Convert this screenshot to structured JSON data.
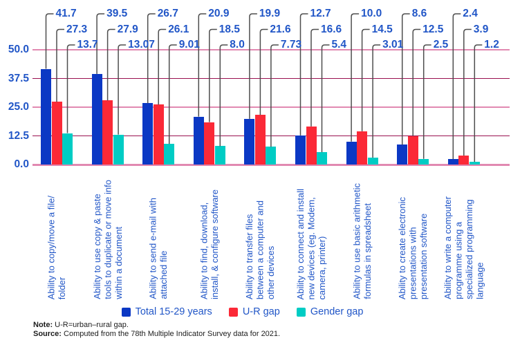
{
  "chart_data": {
    "type": "bar",
    "title": "",
    "categories": [
      [
        "Ability to copy/move a file/",
        "folder"
      ],
      [
        "Ability to use copy & paste",
        "tools to duplicate or move info",
        "within a document"
      ],
      [
        "Ability to send e-mail with",
        "attached file"
      ],
      [
        "Ability to find, download,",
        "install, & configure software"
      ],
      [
        "Ability to transfer files",
        "between a computer and",
        "other devices"
      ],
      [
        "Ability to connect and install",
        "new devices (eg. Modem,",
        "camera, printer)"
      ],
      [
        "Ability to use basic arithmetic",
        "formulas in spreadsheet"
      ],
      [
        "Ability to create electronic",
        "presentations with",
        "presentation software"
      ],
      [
        "Ability to write a computer",
        "programme using a",
        "specialized programming",
        "language"
      ]
    ],
    "series": [
      {
        "name": "Total 15-29 years",
        "color": "#0B38C4",
        "values": [
          41.7,
          39.5,
          26.7,
          20.9,
          19.9,
          12.7,
          10.0,
          8.6,
          2.4
        ],
        "labels": [
          "41.7",
          "39.5",
          "26.7",
          "20.9",
          "19.9",
          "12.7",
          "10.0",
          "8.6",
          "2.4"
        ]
      },
      {
        "name": "U-R gap",
        "color": "#FB2937",
        "values": [
          27.3,
          27.9,
          26.1,
          18.5,
          21.6,
          16.6,
          14.5,
          12.5,
          3.9
        ],
        "labels": [
          "27.3",
          "27.9",
          "26.1",
          "18.5",
          "21.6",
          "16.6",
          "14.5",
          "12.5",
          "3.9"
        ]
      },
      {
        "name": "Gender gap",
        "color": "#00CCC4",
        "values": [
          13.7,
          13.07,
          9.01,
          8.0,
          7.73,
          5.4,
          3.01,
          2.5,
          1.2
        ],
        "labels": [
          "13.7",
          "13.07",
          "9.01",
          "8.0",
          "7.73",
          "5.4",
          "3.01",
          "2.5",
          "1.2"
        ]
      }
    ],
    "y_axis": {
      "range": [
        0,
        50
      ],
      "ticks": [
        {
          "value": 0,
          "label": "0.0"
        },
        {
          "value": 12.5,
          "label": "12.5"
        },
        {
          "value": 25,
          "label": "25.0"
        },
        {
          "value": 37.5,
          "label": "37.5"
        },
        {
          "value": 50,
          "label": "50.0"
        }
      ]
    },
    "grid": {
      "light_color": "#E189B1",
      "dark_color": "#990F4E"
    },
    "callout_color": "#4D4D4D",
    "text_color": "#2156C7",
    "legend_position": "bottom",
    "grid_on": true
  },
  "footnotes": {
    "note_label": "Note:",
    "note_text": "U-R=urban–rural gap.",
    "source_label": "Source:",
    "source_text": "Computed from the 78th Multiple Indicator Survey data for 2021."
  }
}
